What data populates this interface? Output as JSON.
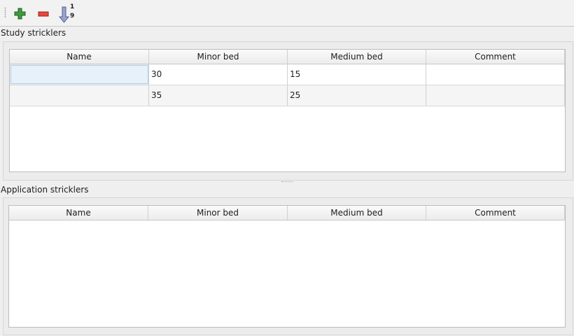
{
  "toolbar": {
    "add_icon": "plus-icon",
    "remove_icon": "minus-icon",
    "sort_icon": "sort-ascending-icon",
    "sort_top": "1",
    "sort_bottom": "9"
  },
  "study": {
    "title": "Study stricklers",
    "columns": [
      "Name",
      "Minor bed",
      "Medium bed",
      "Comment"
    ],
    "rows": [
      [
        "",
        "30",
        "15",
        ""
      ],
      [
        "",
        "35",
        "25",
        ""
      ]
    ]
  },
  "application": {
    "title": "Application stricklers",
    "columns": [
      "Name",
      "Minor bed",
      "Medium bed",
      "Comment"
    ],
    "rows": []
  }
}
